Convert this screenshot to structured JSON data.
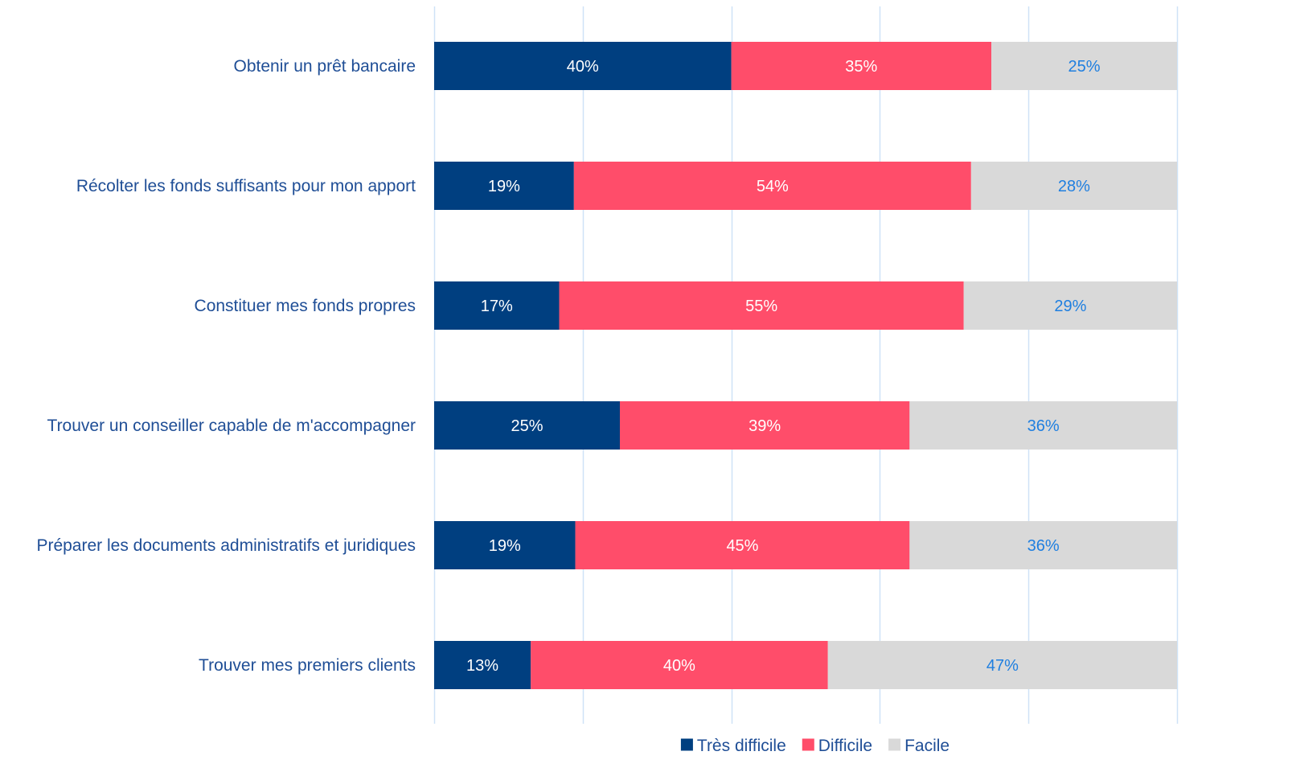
{
  "chart_data": {
    "type": "bar",
    "orientation": "horizontal",
    "stacked": true,
    "normalized_100": true,
    "categories": [
      "Obtenir un prêt bancaire",
      "Récolter les fonds suffisants pour mon apport",
      "Constituer mes fonds propres",
      "Trouver un conseiller capable de m'accompagner",
      "Préparer les documents administratifs et juridiques",
      "Trouver mes premiers clients"
    ],
    "series": [
      {
        "name": "Très difficile",
        "color": "#003f80",
        "label_color": "#ffffff",
        "values": [
          40,
          19,
          17,
          25,
          19,
          13
        ],
        "labels": [
          "40%",
          "19%",
          "17%",
          "25%",
          "19%",
          "13%"
        ]
      },
      {
        "name": "Difficile",
        "color": "#ff4d6a",
        "label_color": "#ffffff",
        "values": [
          35,
          54,
          55,
          39,
          45,
          40
        ],
        "labels": [
          "35%",
          "54%",
          "55%",
          "39%",
          "45%",
          "40%"
        ]
      },
      {
        "name": "Facile",
        "color": "#d9d9d9",
        "label_color": "#1f7fe0",
        "values": [
          25,
          28,
          29,
          36,
          36,
          47
        ],
        "labels": [
          "25%",
          "28%",
          "29%",
          "36%",
          "36%",
          "47%"
        ]
      }
    ],
    "xlim": [
      0,
      100
    ],
    "grid": true,
    "legend_position": "bottom",
    "category_label_color": "#1f4e96",
    "grid_color": "#cfe2f7"
  }
}
